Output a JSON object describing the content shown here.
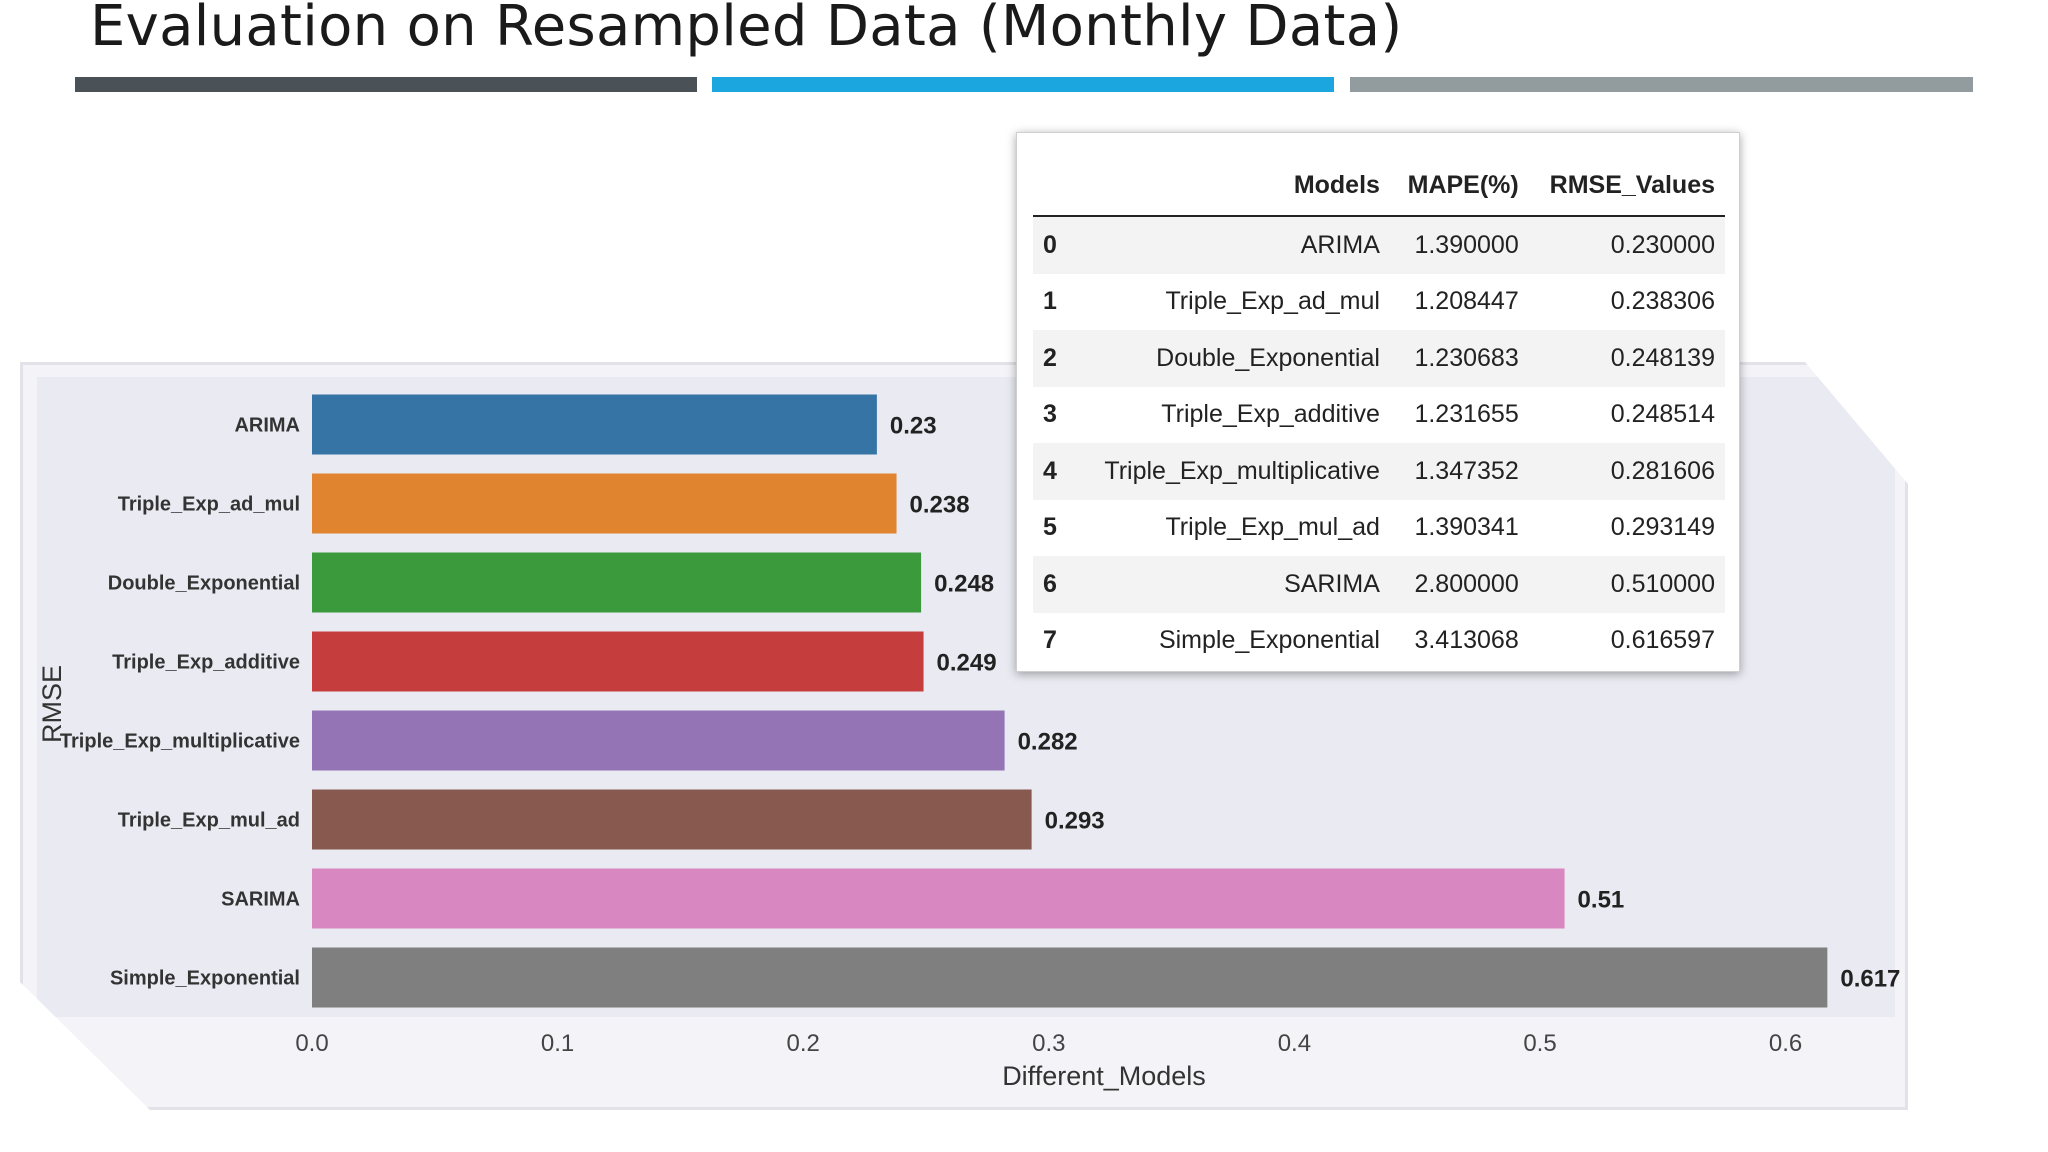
{
  "slide": {
    "title": "Evaluation on Resampled Data (Monthly Data)",
    "bar_colors": [
      "#4a5157",
      "#1ba6e0",
      "#929b9e"
    ]
  },
  "chart_data": {
    "type": "bar",
    "orientation": "horizontal",
    "categories": [
      "ARIMA",
      "Triple_Exp_ad_mul",
      "Double_Exponential",
      "Triple_Exp_additive",
      "Triple_Exp_multiplicative",
      "Triple_Exp_mul_ad",
      "SARIMA",
      "Simple_Exponential"
    ],
    "values": [
      0.23,
      0.238,
      0.248,
      0.249,
      0.282,
      0.293,
      0.51,
      0.617
    ],
    "data_labels": [
      "0.23",
      "0.238",
      "0.248",
      "0.249",
      "0.282",
      "0.293",
      "0.51",
      "0.617"
    ],
    "colors": [
      "#3674a5",
      "#e0842f",
      "#3b9a3c",
      "#c63d3d",
      "#9574b6",
      "#87594f",
      "#d987c1",
      "#7f7f7f"
    ],
    "xlabel": "Different_Models",
    "ylabel": "RMSE",
    "xlim": [
      0,
      0.645
    ],
    "xticks": [
      0.0,
      0.1,
      0.2,
      0.3,
      0.4,
      0.5,
      0.6
    ],
    "xtick_labels": [
      "0.0",
      "0.1",
      "0.2",
      "0.3",
      "0.4",
      "0.5",
      "0.6"
    ],
    "grid": false,
    "background": "#eaeaf2"
  },
  "table": {
    "columns": [
      "",
      "Models",
      "MAPE(%)",
      "RMSE_Values"
    ],
    "rows": [
      [
        "0",
        "ARIMA",
        "1.390000",
        "0.230000"
      ],
      [
        "1",
        "Triple_Exp_ad_mul",
        "1.208447",
        "0.238306"
      ],
      [
        "2",
        "Double_Exponential",
        "1.230683",
        "0.248139"
      ],
      [
        "3",
        "Triple_Exp_additive",
        "1.231655",
        "0.248514"
      ],
      [
        "4",
        "Triple_Exp_multiplicative",
        "1.347352",
        "0.281606"
      ],
      [
        "5",
        "Triple_Exp_mul_ad",
        "1.390341",
        "0.293149"
      ],
      [
        "6",
        "SARIMA",
        "2.800000",
        "0.510000"
      ],
      [
        "7",
        "Simple_Exponential",
        "3.413068",
        "0.616597"
      ]
    ]
  }
}
